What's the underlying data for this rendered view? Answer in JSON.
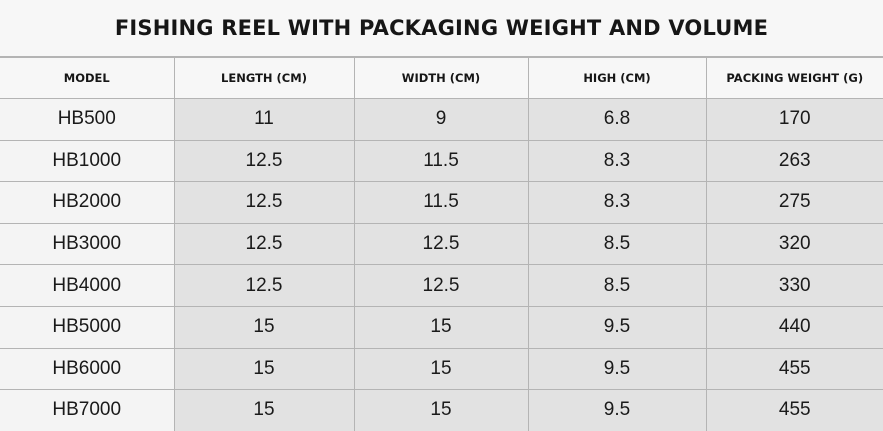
{
  "title": "FISHING REEL WITH PACKAGING WEIGHT AND VOLUME",
  "columns": [
    "MODEL",
    "LENGTH (CM)",
    "WIDTH (CM)",
    "HIGH (CM)",
    "PACKING WEIGHT (G)"
  ],
  "rows": [
    [
      "HB500",
      "11",
      "9",
      "6.8",
      "170"
    ],
    [
      "HB1000",
      "12.5",
      "11.5",
      "8.3",
      "263"
    ],
    [
      "HB2000",
      "12.5",
      "11.5",
      "8.3",
      "275"
    ],
    [
      "HB3000",
      "12.5",
      "12.5",
      "8.5",
      "320"
    ],
    [
      "HB4000",
      "12.5",
      "12.5",
      "8.5",
      "330"
    ],
    [
      "HB5000",
      "15",
      "15",
      "9.5",
      "440"
    ],
    [
      "HB6000",
      "15",
      "15",
      "9.5",
      "455"
    ],
    [
      "HB7000",
      "15",
      "15",
      "9.5",
      "455"
    ]
  ]
}
